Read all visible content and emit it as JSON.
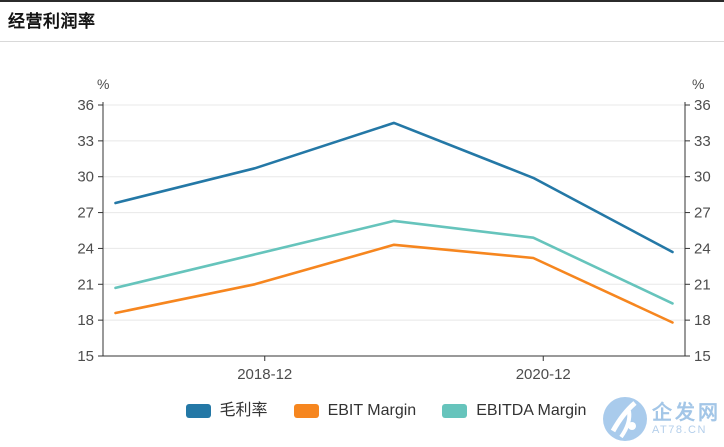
{
  "header": {
    "title": "经营利润率"
  },
  "chart_data": {
    "type": "line",
    "title": "经营利润率",
    "categories": [
      "",
      "2018-12",
      "",
      "2020-12",
      ""
    ],
    "visible_x_tick_labels": [
      "2018-12",
      "2020-12"
    ],
    "series": [
      {
        "name": "毛利率",
        "color": "#2478a6",
        "values": [
          27.8,
          30.7,
          34.5,
          29.9,
          23.7
        ]
      },
      {
        "name": "EBIT Margin",
        "color": "#f6861f",
        "values": [
          18.6,
          21.0,
          24.3,
          23.2,
          17.8
        ]
      },
      {
        "name": "EBITDA Margin",
        "color": "#66c4bc",
        "values": [
          20.7,
          23.5,
          26.3,
          24.9,
          19.4
        ]
      }
    ],
    "y_axis": {
      "min": 15,
      "max": 36,
      "step": 3,
      "ticks": [
        15,
        18,
        21,
        24,
        27,
        30,
        33,
        36
      ],
      "unit_label_left": "%",
      "unit_label_right": "%"
    },
    "grid": true,
    "legend_position": "bottom"
  },
  "watermark": {
    "name": "企发网",
    "domain": "AT78.CN"
  }
}
